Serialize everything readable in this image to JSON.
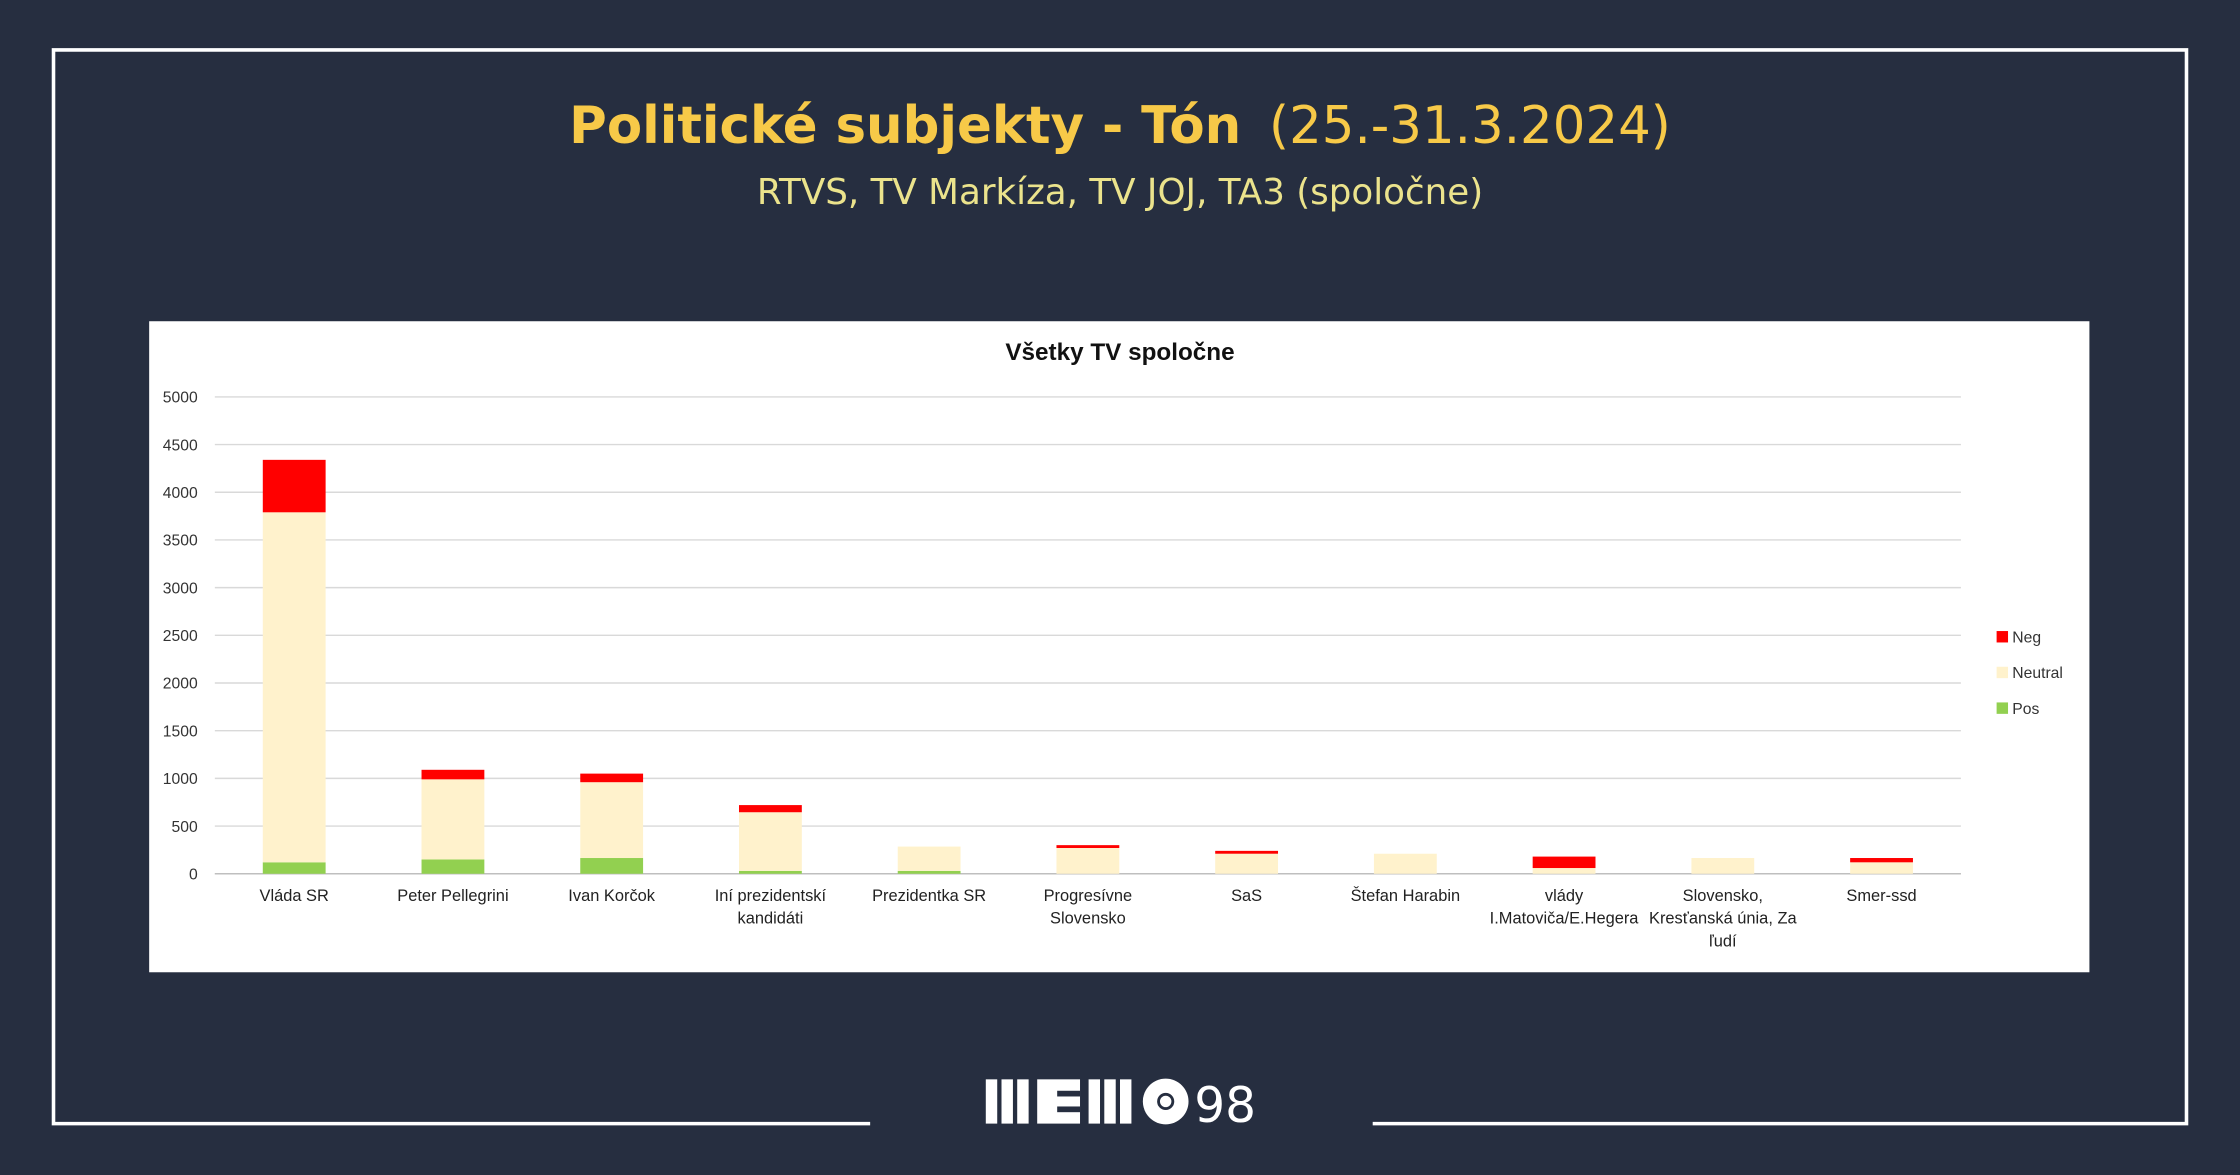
{
  "header": {
    "title": "Politické subjekty - Tón",
    "date": "(25.-31.3.2024)",
    "subtitle": "RTVS, TV Markíza, TV JOJ, TA3 (spoločne)"
  },
  "chart_data": {
    "type": "bar",
    "stacked": true,
    "title": "Všetky TV spoločne",
    "categories": [
      "Vláda SR",
      "Peter Pellegrini",
      "Ivan Korčok",
      "Iní prezidentskí kandidáti",
      "Prezidentka SR",
      "Progresívne Slovensko",
      "SaS",
      "Štefan Harabin",
      "vlády I.Matoviča/E.Hegera",
      "Slovensko, Kresťanská únia, Za ľudí",
      "Smer-ssd"
    ],
    "series": [
      {
        "name": "Pos",
        "color": "#92d050",
        "values": [
          120,
          150,
          165,
          30,
          30,
          0,
          0,
          0,
          0,
          0,
          0
        ]
      },
      {
        "name": "Neutral",
        "color": "#fff2cc",
        "values": [
          3670,
          840,
          795,
          615,
          255,
          270,
          210,
          210,
          60,
          165,
          120
        ]
      },
      {
        "name": "Neg",
        "color": "#ff0000",
        "values": [
          550,
          100,
          90,
          75,
          0,
          30,
          30,
          0,
          120,
          0,
          45
        ]
      }
    ],
    "ylim": [
      0,
      5000
    ],
    "yticks": [
      0,
      500,
      1000,
      1500,
      2000,
      2500,
      3000,
      3500,
      4000,
      4500,
      5000
    ],
    "grid": true,
    "legend": "right"
  },
  "footer": {
    "logo_number": "98"
  }
}
